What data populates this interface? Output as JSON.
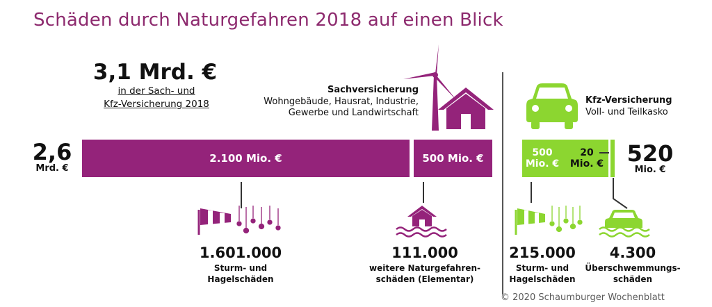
{
  "title": "Schäden durch Naturgefahren 2018 auf einen Blick",
  "total": {
    "amount": "3,1 Mrd. €",
    "subtitle_line1": "in der Sach- und",
    "subtitle_line2": "Kfz-Versicherung 2018"
  },
  "sach": {
    "title": "Sachversicherung",
    "desc_line1": "Wohngebäude, Hausrat, Industrie,",
    "desc_line2": "Gewerbe und Landwirtschaft",
    "total_value": "2,6",
    "total_unit": "Mrd. €"
  },
  "kfz": {
    "title": "Kfz-Versicherung",
    "desc": "Voll- und Teilkasko",
    "total_value": "520",
    "total_unit": "Mio. €"
  },
  "colors": {
    "purple": "#94237a",
    "green": "#8cd630",
    "title": "#8d2a6e"
  },
  "chart_data": {
    "type": "bar",
    "title": "Schäden durch Naturgefahren 2018 auf einen Blick",
    "orientation": "horizontal-stacked",
    "unit": "Mio. €",
    "segments": [
      {
        "group": "Sachversicherung",
        "label": "2.100 Mio. €",
        "value": 2100,
        "count": "1.601.000",
        "count_label_1": "Sturm- und",
        "count_label_2": "Hagelschäden"
      },
      {
        "group": "Sachversicherung",
        "label": "500 Mio. €",
        "value": 500,
        "count": "111.000",
        "count_label_1": "weitere Naturgefahren-",
        "count_label_2": "schäden (Elementar)"
      },
      {
        "group": "Kfz-Versicherung",
        "label_1": "500",
        "label_2": "Mio. €",
        "value": 500,
        "count": "215.000",
        "count_label_1": "Sturm- und",
        "count_label_2": "Hagelschäden"
      },
      {
        "group": "Kfz-Versicherung",
        "label_1": "20",
        "label_2": "Mio. €",
        "value": 20,
        "count": "4.300",
        "count_label_1": "Überschwemmungs-",
        "count_label_2": "schäden"
      }
    ]
  },
  "icons": [
    "wind-turbine-icon",
    "house-icon",
    "car-icon",
    "windsock-hail-icon",
    "flooded-house-icon",
    "flooded-car-icon"
  ],
  "copyright": "© 2020 Schaumburger Wochenblatt"
}
